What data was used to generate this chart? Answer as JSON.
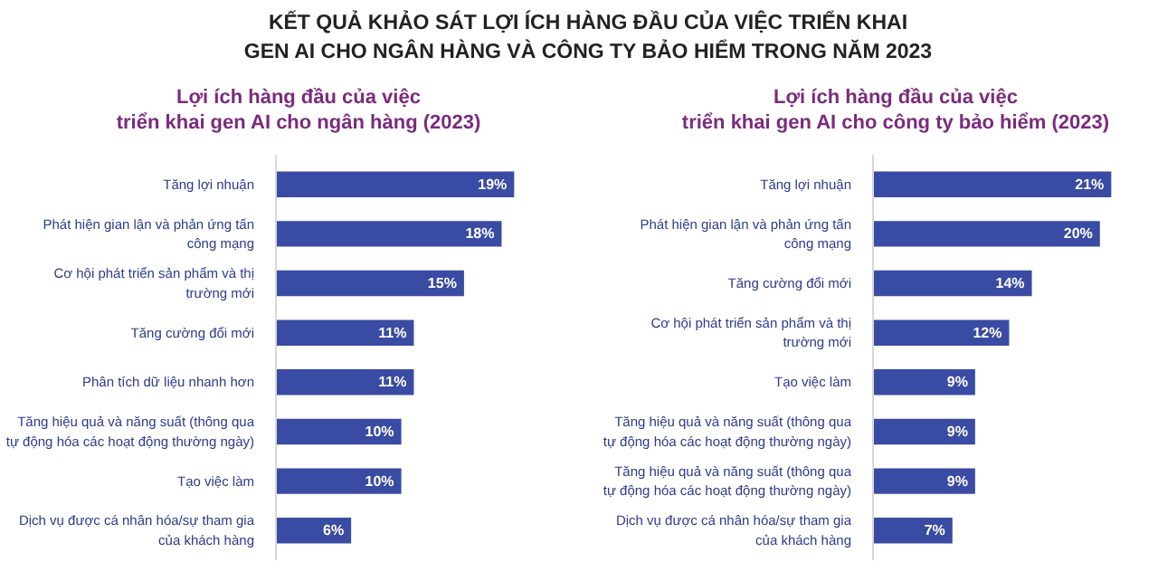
{
  "chart_data": [
    {
      "type": "bar",
      "orientation": "horizontal",
      "title": "KẾT QUẢ KHẢO SÁT LỢI ÍCH HÀNG ĐẦU CỦA VIỆC TRIỂN KHAI GEN AI CHO NGÂN HÀNG VÀ CÔNG TY BẢO HIỂM TRONG NĂM 2023",
      "subtitle": "Lợi ích hàng đầu của việc triển khai gen AI cho ngân hàng (2023)",
      "categories": [
        "Tăng lợi nhuận",
        "Phát hiện gian lận và phản ứng tấn công mạng",
        "Cơ hội phát triển sản phẩm và thị trường mới",
        "Tăng cường đổi mới",
        "Phân tích dữ liệu nhanh hơn",
        "Tăng hiệu quả và năng suất (thông qua tự động hóa các hoạt động thường ngày)",
        "Tạo việc làm",
        "Dịch vụ được cá nhân hóa/sự tham gia của khách hàng"
      ],
      "values": [
        19,
        18,
        15,
        11,
        11,
        10,
        10,
        6
      ],
      "color": "#3a4ba3",
      "value_labels": [
        "19%",
        "18%",
        "15%",
        "11%",
        "11%",
        "10%",
        "10%",
        "6%"
      ]
    },
    {
      "type": "bar",
      "orientation": "horizontal",
      "subtitle": "Lợi ích hàng đầu của việc triển khai gen AI cho công ty bảo hiểm (2023)",
      "categories": [
        "Tăng lợi nhuận",
        "Phát hiện gian lận và phản ứng tấn công mạng",
        "Tăng cường đổi mới",
        "Cơ hội phát triển sản phẩm và thị trường mới",
        "Tạo việc làm",
        "Tăng hiệu quả và năng suất (thông qua tự động hóa các hoạt động thường ngày)",
        "Tăng hiệu quả và năng suất (thông qua tự động hóa các hoạt động thường ngày)",
        "Dịch vụ được cá nhân hóa/sự tham gia của khách hàng"
      ],
      "values": [
        21,
        20,
        14,
        12,
        9,
        9,
        9,
        7
      ],
      "color": "#3a4ba3",
      "value_labels": [
        "21%",
        "20%",
        "14%",
        "12%",
        "9%",
        "9%",
        "9%",
        "7%"
      ]
    }
  ]
}
